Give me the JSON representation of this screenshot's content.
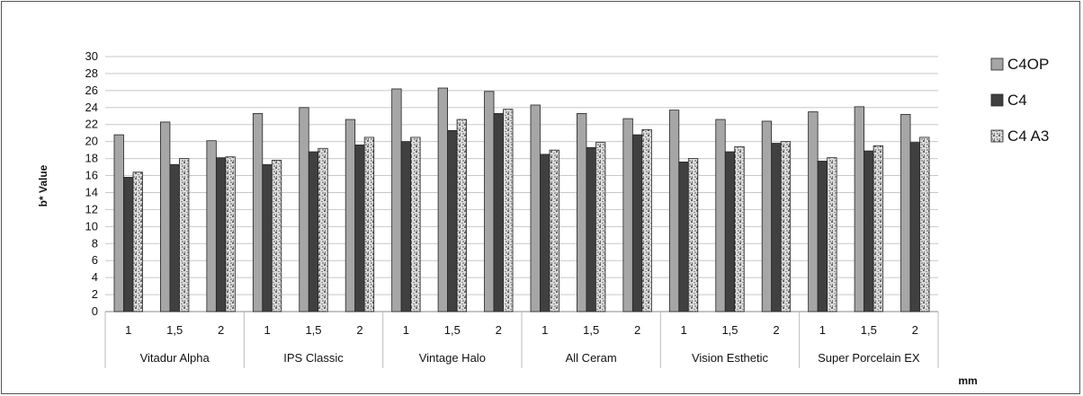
{
  "chart_data": {
    "type": "bar",
    "ylabel": "b* Value",
    "xlabel": "mm",
    "ylim": [
      0,
      30
    ],
    "yticks": [
      0,
      2,
      4,
      6,
      8,
      10,
      12,
      14,
      16,
      18,
      20,
      22,
      24,
      26,
      28,
      30
    ],
    "grid": true,
    "legend_position": "right",
    "groups": [
      "Vitadur Alpha",
      "IPS Classic",
      "Vintage Halo",
      "All Ceram",
      "Vision Esthetic",
      "Super Porcelain EX"
    ],
    "subcategories": [
      "1",
      "1,5",
      "2"
    ],
    "series": [
      {
        "name": "C4OP",
        "color": "#a6a6a6",
        "values": [
          20.8,
          22.3,
          20.1,
          23.3,
          24.0,
          22.6,
          26.2,
          26.3,
          25.9,
          24.3,
          23.3,
          22.7,
          23.7,
          22.6,
          22.4,
          23.5,
          24.1,
          23.2
        ]
      },
      {
        "name": "C4",
        "color": "#404040",
        "values": [
          15.8,
          17.3,
          18.1,
          17.3,
          18.8,
          19.6,
          20.0,
          21.3,
          23.3,
          18.5,
          19.3,
          20.8,
          17.6,
          18.8,
          19.8,
          17.7,
          18.9,
          19.9
        ]
      },
      {
        "name": "C4 A3",
        "color": "#d0d0d0",
        "values": [
          16.4,
          18.0,
          18.2,
          17.8,
          19.2,
          20.5,
          20.5,
          22.6,
          23.8,
          19.0,
          19.9,
          21.4,
          18.0,
          19.4,
          20.0,
          18.1,
          19.5,
          20.5
        ]
      }
    ]
  }
}
